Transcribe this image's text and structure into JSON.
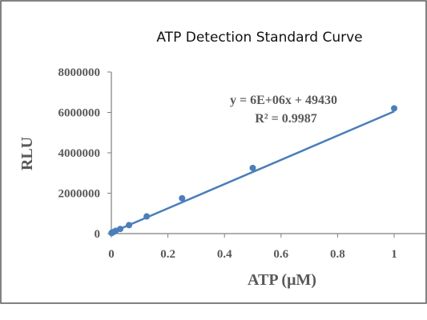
{
  "chart_data": {
    "type": "scatter",
    "title": "ATP Detection Standard Curve",
    "xlabel": "ATP (μM)",
    "ylabel": "RLU",
    "xlim": [
      0,
      1
    ],
    "ylim": [
      0,
      8000000
    ],
    "x_ticks": [
      "0",
      "0.2",
      "0.4",
      "0.6",
      "0.8",
      "1"
    ],
    "x_tick_values": [
      0,
      0.2,
      0.4,
      0.6,
      0.8,
      1
    ],
    "y_ticks": [
      "0",
      "2000000",
      "4000000",
      "6000000",
      "8000000"
    ],
    "y_tick_values": [
      0,
      2000000,
      4000000,
      6000000,
      8000000
    ],
    "grid": false,
    "series": [
      {
        "points": [
          {
            "x": 0.00098,
            "y": 30000
          },
          {
            "x": 0.00195,
            "y": 45000
          },
          {
            "x": 0.0039,
            "y": 60000
          },
          {
            "x": 0.0078,
            "y": 80000
          },
          {
            "x": 0.0156,
            "y": 140000
          },
          {
            "x": 0.03125,
            "y": 230000
          },
          {
            "x": 0.0625,
            "y": 420000
          },
          {
            "x": 0.125,
            "y": 850000
          },
          {
            "x": 0.25,
            "y": 1750000
          },
          {
            "x": 0.5,
            "y": 3250000
          },
          {
            "x": 1.0,
            "y": 6200000
          }
        ],
        "color": "#4a7ebb"
      }
    ],
    "trendline": {
      "slope": 6000000,
      "intercept": 49430,
      "color": "#4a7ebb"
    },
    "annotations": {
      "equation": "y = 6E+06x + 49430",
      "r_squared": "R² = 0.9987"
    }
  }
}
